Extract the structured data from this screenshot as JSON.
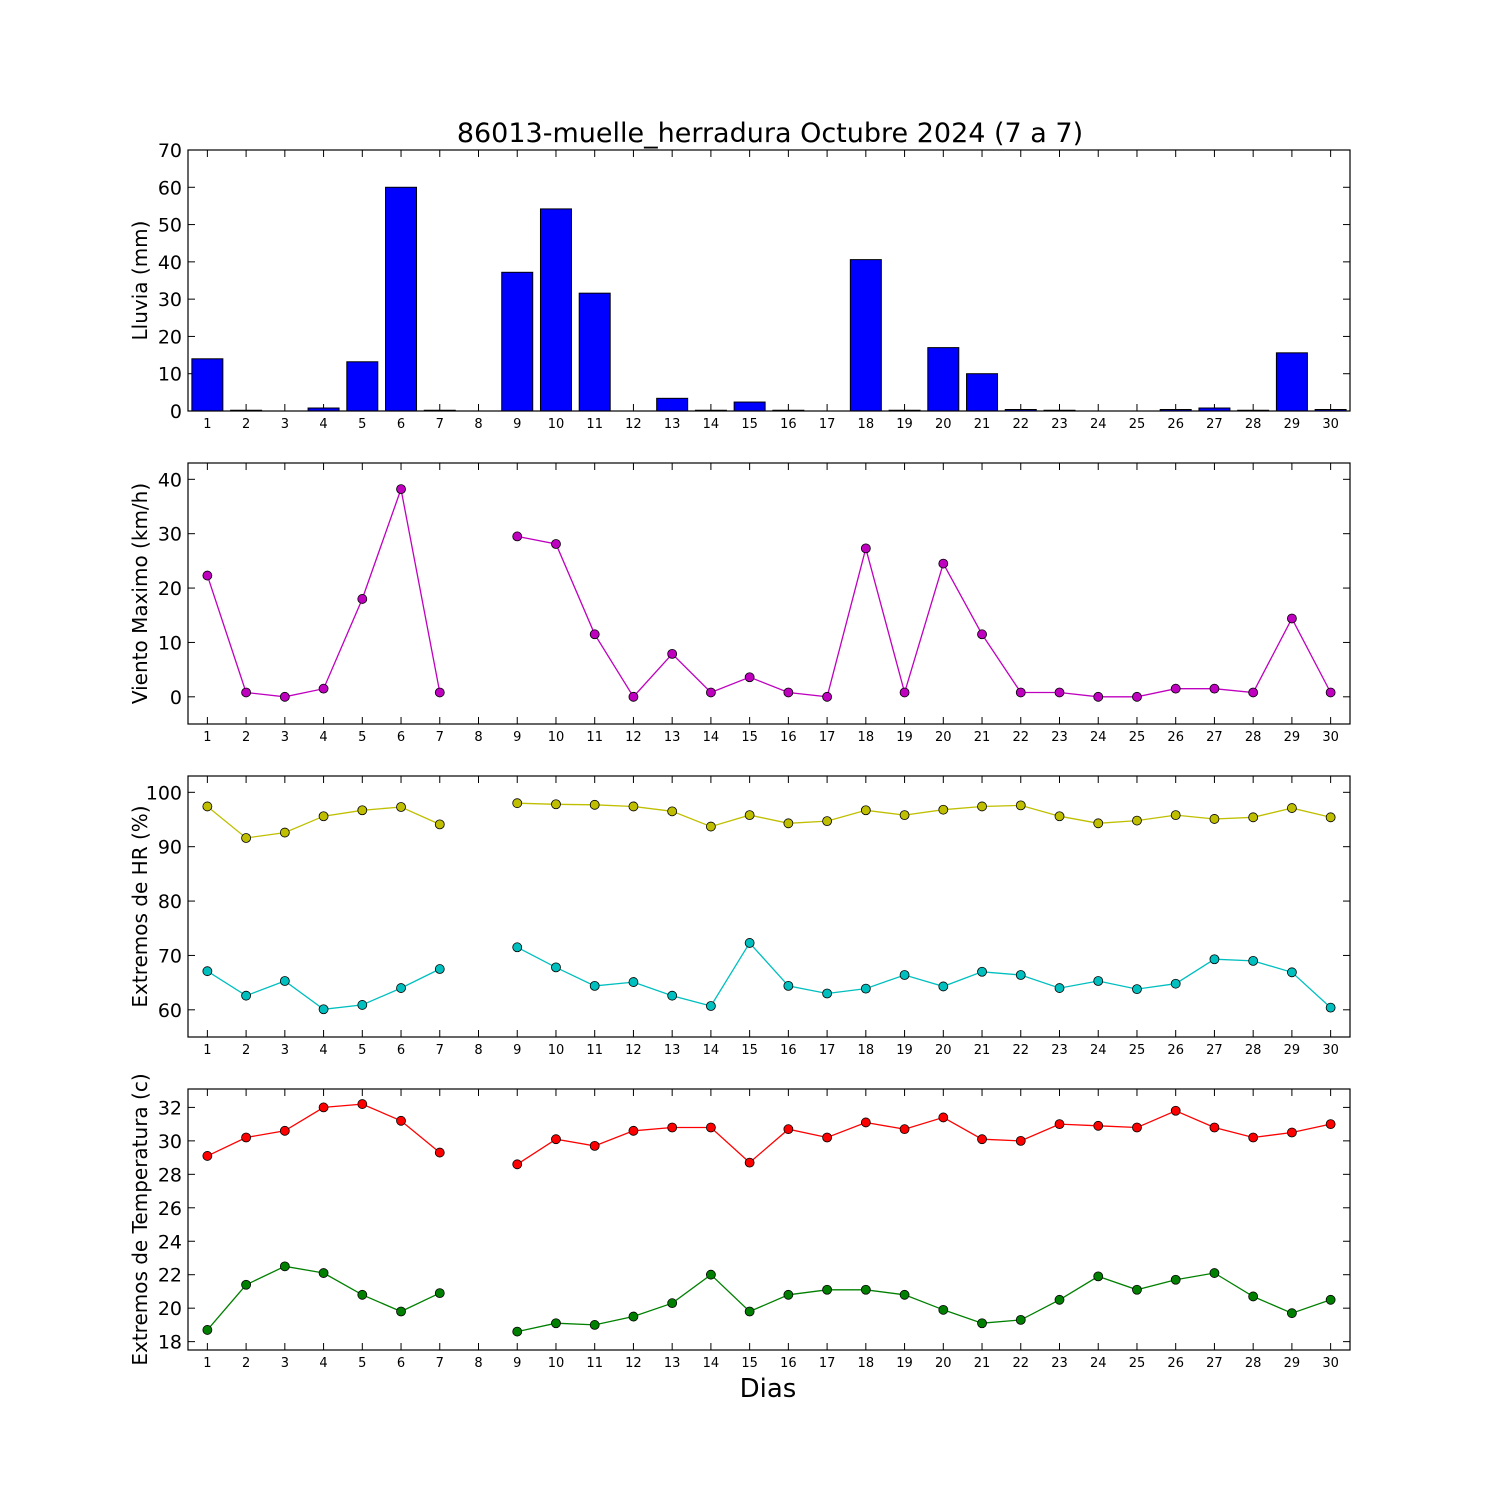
{
  "figure": {
    "title": "86013-muelle_herradura Octubre 2024  (7 a 7)",
    "xlabel": "Dias"
  },
  "chart_data": [
    {
      "type": "bar",
      "ylabel": "Lluvia (mm)",
      "ylim": [
        0,
        70
      ],
      "yticks": [
        0,
        10,
        20,
        30,
        40,
        50,
        60,
        70
      ],
      "categories": [
        1,
        2,
        3,
        4,
        5,
        6,
        7,
        8,
        9,
        10,
        11,
        12,
        13,
        14,
        15,
        16,
        17,
        18,
        19,
        20,
        21,
        22,
        23,
        24,
        25,
        26,
        27,
        28,
        29,
        30
      ],
      "values": [
        14.0,
        0.2,
        0.0,
        0.8,
        13.2,
        60.0,
        0.2,
        null,
        37.2,
        54.2,
        31.6,
        0.0,
        3.4,
        0.2,
        2.4,
        0.2,
        0.0,
        40.6,
        0.2,
        17.0,
        10.0,
        0.4,
        0.2,
        0.0,
        0.0,
        0.4,
        0.8,
        0.2,
        15.6,
        0.4
      ],
      "color": "#0000ff",
      "grid": false
    },
    {
      "type": "line",
      "ylabel": "Viento Maximo (km/h)",
      "ylim": [
        -5,
        43
      ],
      "yticks": [
        0,
        10,
        20,
        30,
        40
      ],
      "x": [
        1,
        2,
        3,
        4,
        5,
        6,
        7,
        8,
        9,
        10,
        11,
        12,
        13,
        14,
        15,
        16,
        17,
        18,
        19,
        20,
        21,
        22,
        23,
        24,
        25,
        26,
        27,
        28,
        29,
        30
      ],
      "series": [
        {
          "values": [
            22.3,
            0.8,
            0.0,
            1.5,
            18.0,
            38.2,
            0.8,
            null,
            29.5,
            28.1,
            11.5,
            0.0,
            7.9,
            0.8,
            3.6,
            0.8,
            0.0,
            27.3,
            0.8,
            24.5,
            11.5,
            0.8,
            0.8,
            0.0,
            0.0,
            1.5,
            1.5,
            0.8,
            14.4,
            0.8
          ],
          "color": "#bf00bf"
        }
      ],
      "grid": false
    },
    {
      "type": "line",
      "ylabel": "Extremos de HR (%)",
      "ylim": [
        55,
        103
      ],
      "yticks": [
        60,
        70,
        80,
        90,
        100
      ],
      "x": [
        1,
        2,
        3,
        4,
        5,
        6,
        7,
        8,
        9,
        10,
        11,
        12,
        13,
        14,
        15,
        16,
        17,
        18,
        19,
        20,
        21,
        22,
        23,
        24,
        25,
        26,
        27,
        28,
        29,
        30
      ],
      "series": [
        {
          "values": [
            97.4,
            91.6,
            92.6,
            95.6,
            96.7,
            97.3,
            94.1,
            null,
            98.0,
            97.8,
            97.7,
            97.4,
            96.5,
            93.7,
            95.8,
            94.3,
            94.7,
            96.7,
            95.8,
            96.8,
            97.4,
            97.6,
            95.6,
            94.3,
            94.8,
            95.8,
            95.1,
            95.4,
            97.1,
            95.4
          ],
          "color": "#bfbf00"
        },
        {
          "values": [
            67.1,
            62.6,
            65.3,
            60.1,
            60.9,
            64.0,
            67.5,
            null,
            71.5,
            67.8,
            64.4,
            65.1,
            62.6,
            60.7,
            72.3,
            64.4,
            63.0,
            63.9,
            66.4,
            64.3,
            67.0,
            66.4,
            64.0,
            65.3,
            63.8,
            64.8,
            69.3,
            69.0,
            66.9,
            60.4
          ],
          "color": "#00bfbf"
        }
      ],
      "grid": false
    },
    {
      "type": "line",
      "ylabel": "Extremos de Temperatura (c)",
      "ylim": [
        17.5,
        33.1
      ],
      "yticks": [
        18,
        20,
        22,
        24,
        26,
        28,
        30,
        32
      ],
      "x": [
        1,
        2,
        3,
        4,
        5,
        6,
        7,
        8,
        9,
        10,
        11,
        12,
        13,
        14,
        15,
        16,
        17,
        18,
        19,
        20,
        21,
        22,
        23,
        24,
        25,
        26,
        27,
        28,
        29,
        30
      ],
      "series": [
        {
          "values": [
            29.1,
            30.2,
            30.6,
            32.0,
            32.2,
            31.2,
            29.3,
            null,
            28.6,
            30.1,
            29.7,
            30.6,
            30.8,
            30.8,
            28.7,
            30.7,
            30.2,
            31.1,
            30.7,
            31.4,
            30.1,
            30.0,
            31.0,
            30.9,
            30.8,
            31.8,
            30.8,
            30.2,
            30.5,
            31.0
          ],
          "color": "#ff0000"
        },
        {
          "values": [
            18.7,
            21.4,
            22.5,
            22.1,
            20.8,
            19.8,
            20.9,
            null,
            18.6,
            19.1,
            19.0,
            19.5,
            20.3,
            22.0,
            19.8,
            20.8,
            21.1,
            21.1,
            20.8,
            19.9,
            19.1,
            19.3,
            20.5,
            21.9,
            21.1,
            21.7,
            22.1,
            20.7,
            19.7,
            20.5
          ],
          "color": "#008000"
        }
      ],
      "grid": false
    }
  ]
}
